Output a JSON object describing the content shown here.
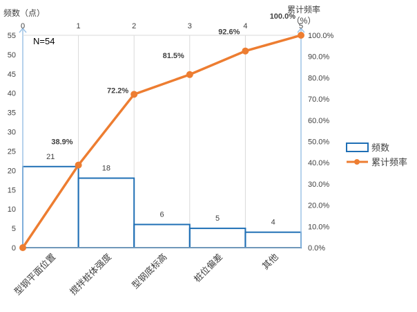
{
  "chart_data": {
    "type": "pareto",
    "note": "N=54",
    "left_axis_title": "频数（点）",
    "right_axis_title_line1": "累计频率",
    "right_axis_title_line2": "（%）",
    "categories": [
      "型钢平面位置",
      "搅拌桩体强度",
      "型钢底标高",
      "桩位偏差",
      "其他"
    ],
    "bar_values": [
      21,
      18,
      6,
      5,
      4
    ],
    "bar_labels": [
      "21",
      "18",
      "6",
      "5",
      "4"
    ],
    "cumulative_x": [
      0,
      1,
      2,
      3,
      4,
      5
    ],
    "cumulative_pct": [
      0,
      38.9,
      72.2,
      81.5,
      92.6,
      100.0
    ],
    "cumulative_labels": [
      "",
      "38.9%",
      "72.2%",
      "81.5%",
      "92.6%",
      "100.0%"
    ],
    "left_ticks": [
      "0",
      "5",
      "10",
      "15",
      "20",
      "25",
      "30",
      "35",
      "40",
      "45",
      "50",
      "55"
    ],
    "right_ticks": [
      "0.0%",
      "10.0%",
      "20.0%",
      "30.0%",
      "40.0%",
      "50.0%",
      "60.0%",
      "70.0%",
      "80.0%",
      "90.0%",
      "100.0%"
    ],
    "top_ticks": [
      "0",
      "1",
      "2",
      "3",
      "4",
      "5"
    ],
    "ylim_left": [
      0,
      55
    ],
    "ylim_right": [
      0,
      100
    ],
    "xlim_top": [
      0,
      5
    ],
    "legend": {
      "bar": "频数",
      "line": "累计频率"
    },
    "colors": {
      "bar": "#1f6fb5",
      "line": "#ed7d31",
      "axis": "#9dc3e6",
      "grid": "#d9d9d9"
    }
  }
}
